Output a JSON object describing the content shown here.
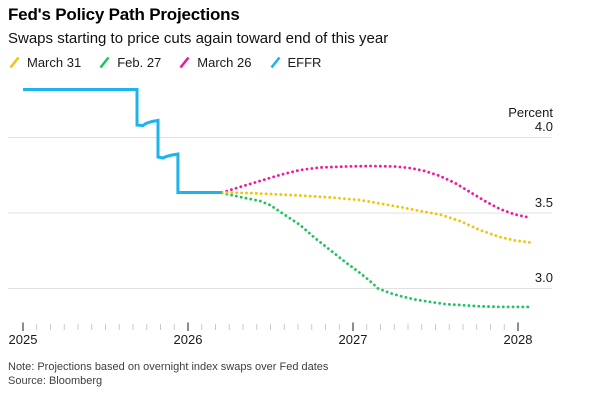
{
  "header": {
    "title": "Fed's Policy Path Projections",
    "subtitle": "Swaps starting to price cuts again toward end of this year"
  },
  "legend": [
    {
      "label": "March 31",
      "color": "#f2c40e"
    },
    {
      "label": "Feb. 27",
      "color": "#1ec45f"
    },
    {
      "label": "March 26",
      "color": "#f2189c"
    },
    {
      "label": "EFFR",
      "color": "#1cb4ea"
    }
  ],
  "chart_data": {
    "type": "line",
    "unit_label": "Percent",
    "y_ticks": [
      4.0,
      3.5,
      3.0
    ],
    "y_tick_labels": [
      "4.0",
      "3.5",
      "3.0"
    ],
    "x_tick_years": [
      2025,
      2026,
      2027,
      2028
    ],
    "x_tick_labels": [
      "2025",
      "2026",
      "2027",
      "2028"
    ],
    "xlim": [
      2025.0,
      2028.1
    ],
    "ylim": [
      2.8,
      4.35
    ],
    "grid": "horizontal",
    "legend_position": "top-left",
    "colors": {
      "gridline": "#e1e1e1",
      "minor_tick": "#c9c9c9",
      "major_tick": "#5a5a5a"
    },
    "series": [
      {
        "name": "Feb. 27",
        "color": "#1ec45f",
        "style": "dotted",
        "points": [
          [
            2026.206,
            3.633
          ],
          [
            2026.315,
            3.606
          ],
          [
            2026.436,
            3.58
          ],
          [
            2026.497,
            3.553
          ],
          [
            2026.588,
            3.487
          ],
          [
            2026.679,
            3.421
          ],
          [
            2026.77,
            3.334
          ],
          [
            2026.861,
            3.255
          ],
          [
            2026.952,
            3.176
          ],
          [
            2027.042,
            3.103
          ],
          [
            2027.103,
            3.05
          ],
          [
            2027.152,
            3.0
          ],
          [
            2027.224,
            2.97
          ],
          [
            2027.285,
            2.95
          ],
          [
            2027.376,
            2.927
          ],
          [
            2027.467,
            2.911
          ],
          [
            2027.558,
            2.897
          ],
          [
            2027.648,
            2.891
          ],
          [
            2027.77,
            2.882
          ],
          [
            2027.891,
            2.878
          ],
          [
            2027.982,
            2.878
          ],
          [
            2028.067,
            2.878
          ]
        ]
      },
      {
        "name": "March 26",
        "color": "#f2189c",
        "style": "dotted",
        "points": [
          [
            2026.206,
            3.636
          ],
          [
            2026.315,
            3.672
          ],
          [
            2026.436,
            3.712
          ],
          [
            2026.558,
            3.752
          ],
          [
            2026.679,
            3.785
          ],
          [
            2026.8,
            3.801
          ],
          [
            2026.952,
            3.808
          ],
          [
            2027.103,
            3.811
          ],
          [
            2027.255,
            3.808
          ],
          [
            2027.345,
            3.798
          ],
          [
            2027.436,
            3.778
          ],
          [
            2027.527,
            3.745
          ],
          [
            2027.618,
            3.699
          ],
          [
            2027.709,
            3.639
          ],
          [
            2027.8,
            3.579
          ],
          [
            2027.891,
            3.526
          ],
          [
            2027.982,
            3.49
          ],
          [
            2028.067,
            3.47
          ]
        ]
      },
      {
        "name": "March 31",
        "color": "#f2c40e",
        "style": "dotted",
        "points": [
          [
            2026.206,
            3.636
          ],
          [
            2026.345,
            3.633
          ],
          [
            2026.497,
            3.626
          ],
          [
            2026.679,
            3.616
          ],
          [
            2026.861,
            3.603
          ],
          [
            2027.042,
            3.586
          ],
          [
            2027.164,
            3.563
          ],
          [
            2027.285,
            3.54
          ],
          [
            2027.406,
            3.513
          ],
          [
            2027.527,
            3.49
          ],
          [
            2027.648,
            3.447
          ],
          [
            2027.77,
            3.387
          ],
          [
            2027.891,
            3.341
          ],
          [
            2027.982,
            3.318
          ],
          [
            2028.073,
            3.305
          ]
        ]
      },
      {
        "name": "EFFR",
        "color": "#1cb4ea",
        "style": "solid",
        "points": [
          [
            2025.0,
            4.318
          ],
          [
            2025.691,
            4.318
          ],
          [
            2025.691,
            4.083
          ],
          [
            2025.727,
            4.079
          ],
          [
            2025.745,
            4.093
          ],
          [
            2025.782,
            4.106
          ],
          [
            2025.818,
            4.113
          ],
          [
            2025.818,
            3.871
          ],
          [
            2025.848,
            3.864
          ],
          [
            2025.867,
            3.874
          ],
          [
            2025.903,
            3.884
          ],
          [
            2025.939,
            3.891
          ],
          [
            2025.939,
            3.636
          ],
          [
            2026.206,
            3.636
          ]
        ]
      }
    ]
  },
  "footer": {
    "note": "Note: Projections based on overnight index swaps over Fed dates",
    "source": "Source: Bloomberg"
  }
}
